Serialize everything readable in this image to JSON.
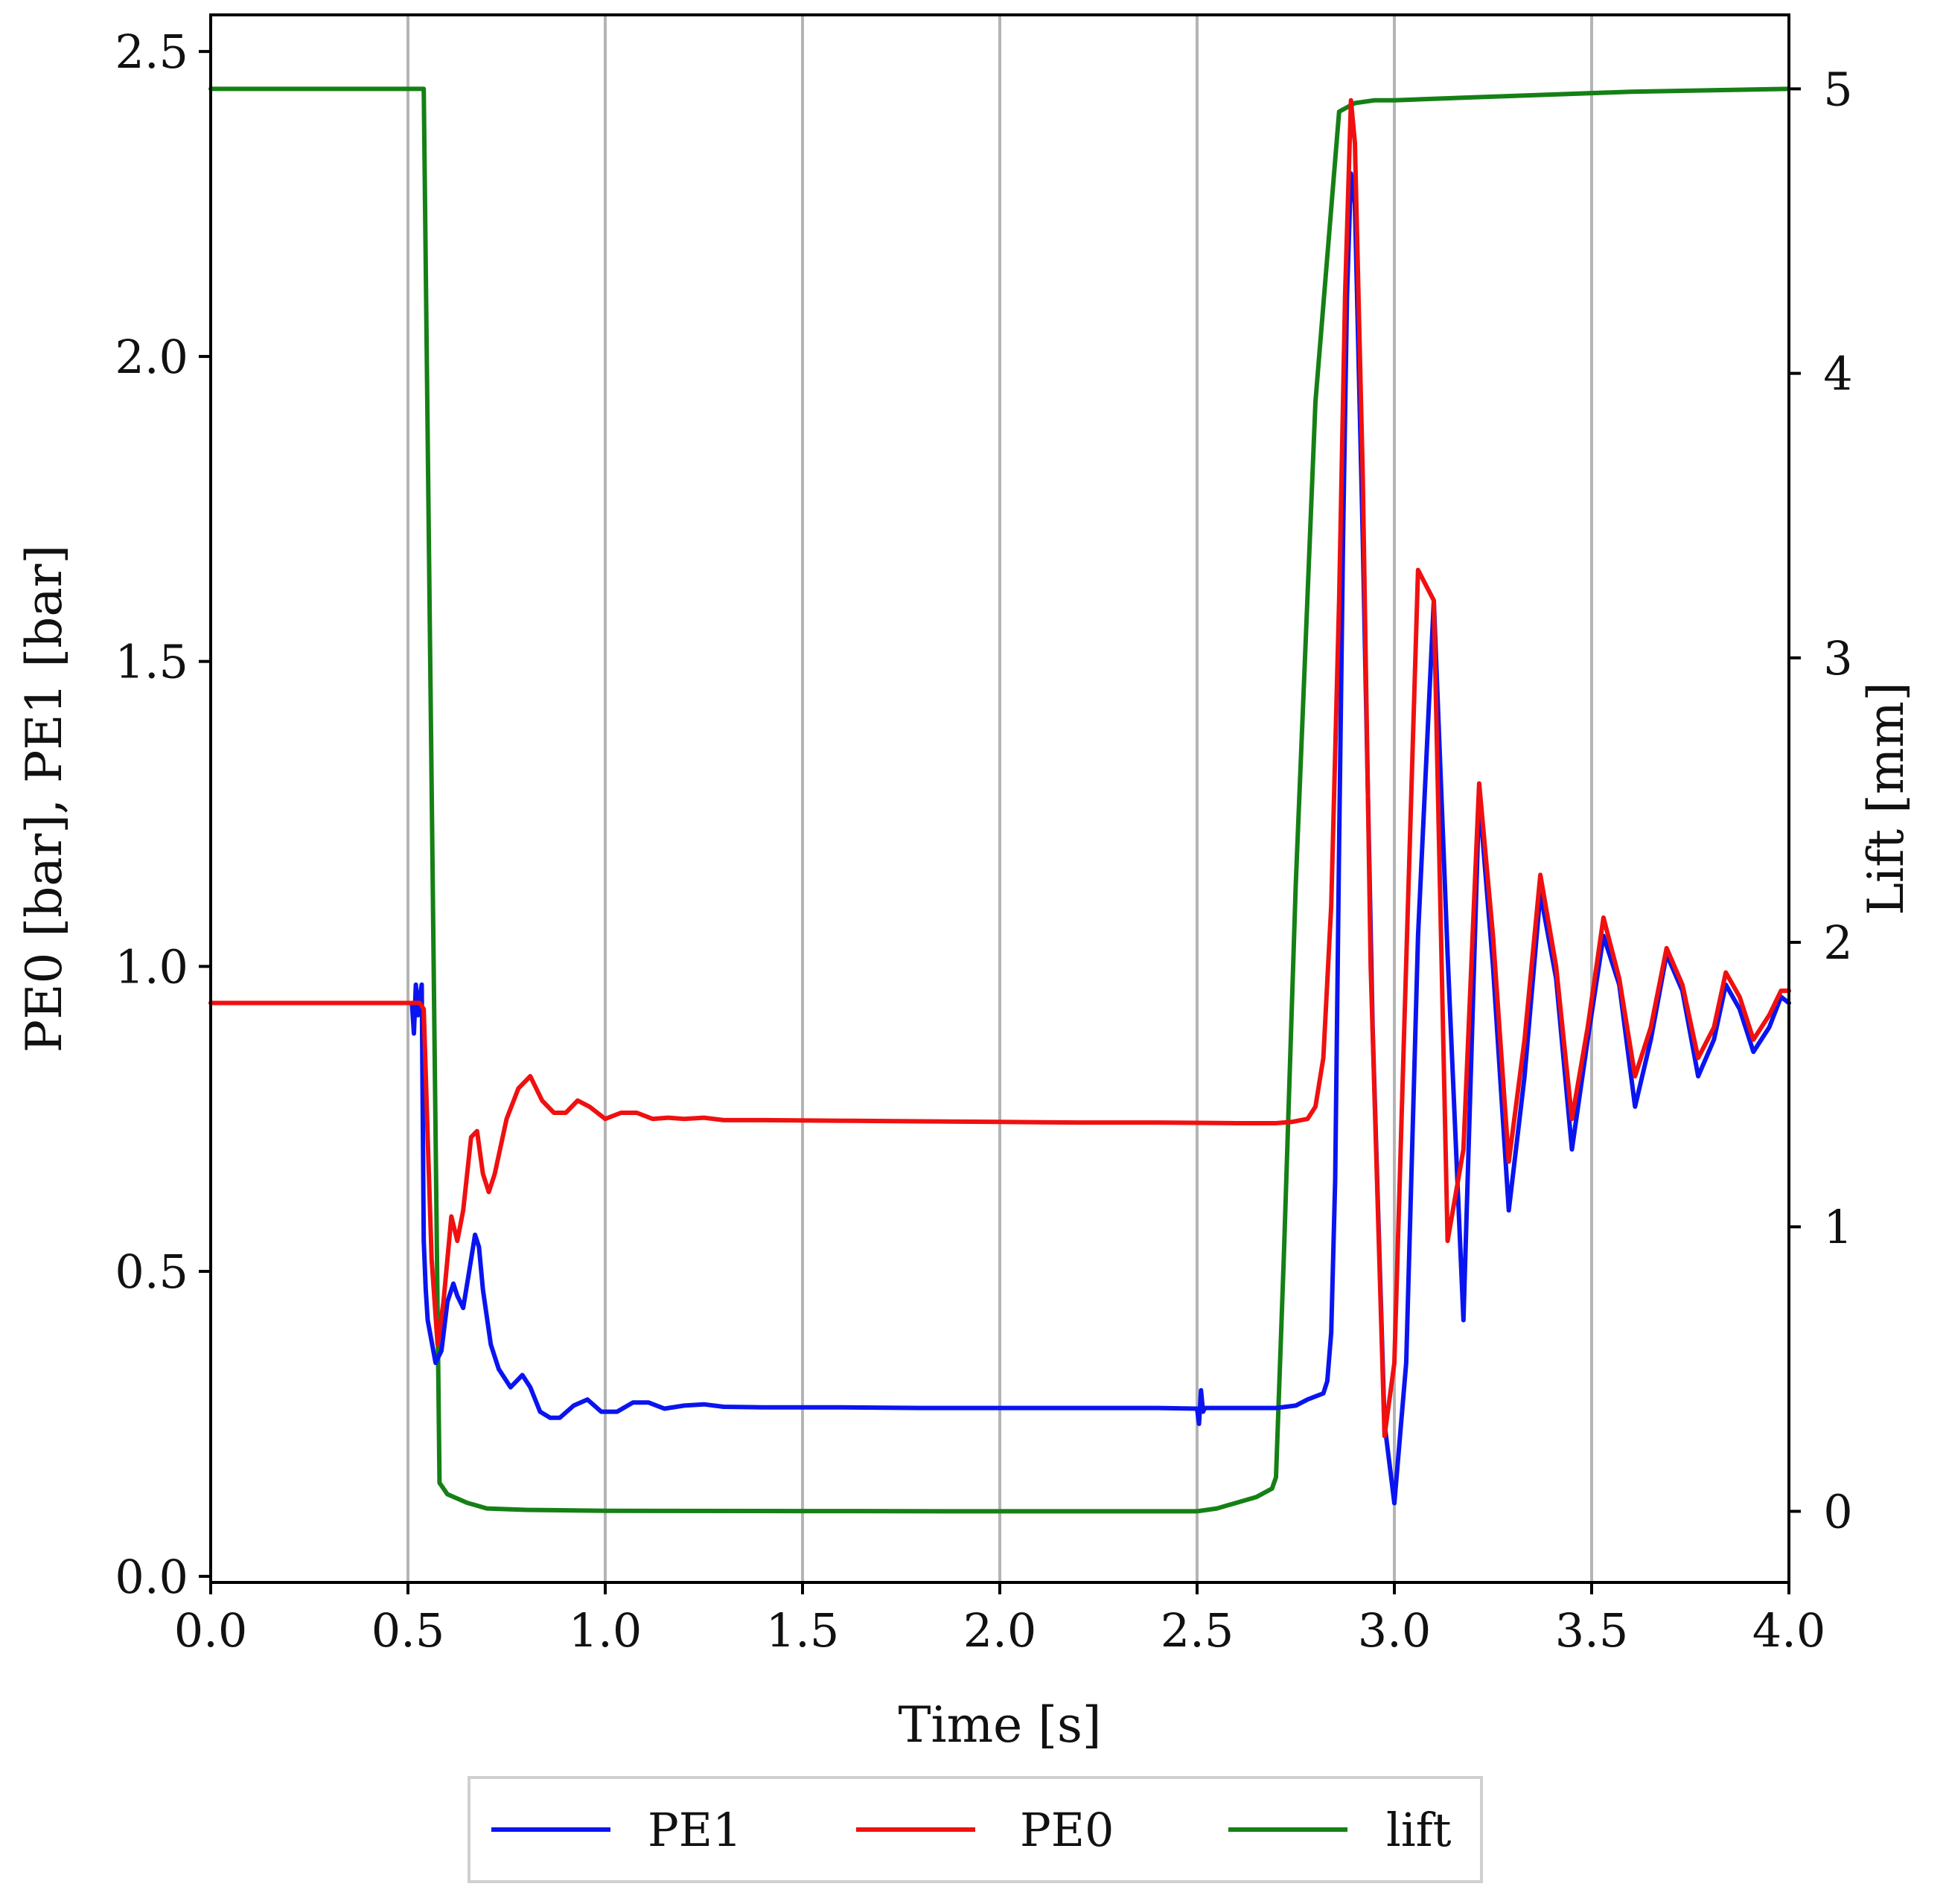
{
  "chart_data": {
    "type": "line",
    "title": "",
    "xlabel": "Time [s]",
    "ylabel": "PE0 [bar], PE1 [bar]",
    "y2label": "Lift [mm]",
    "xlim": [
      0.0,
      4.0
    ],
    "ylim": [
      -0.01,
      2.56
    ],
    "y2lim": [
      -0.25,
      5.26
    ],
    "xticks": [
      "0.0",
      "0.5",
      "1.0",
      "1.5",
      "2.0",
      "2.5",
      "3.0",
      "3.5",
      "4.0"
    ],
    "yticks": [
      "0.0",
      "0.5",
      "1.0",
      "1.5",
      "2.0",
      "2.5"
    ],
    "y2ticks": [
      "0",
      "1",
      "2",
      "3",
      "4",
      "5"
    ],
    "grid": "vertical",
    "legend": {
      "placement": "bottom",
      "entries": [
        "PE1",
        "PE0",
        "lift"
      ]
    },
    "colors": {
      "PE1": "#0a14f0",
      "PE0": "#f01010",
      "lift": "#158015",
      "grid": "#b4b4b4"
    },
    "series": [
      {
        "name": "PE1",
        "axis": "left",
        "x": [
          0.0,
          0.5,
          0.51,
          0.515,
          0.52,
          0.525,
          0.53,
          0.535,
          0.54,
          0.545,
          0.55,
          0.57,
          0.585,
          0.6,
          0.615,
          0.625,
          0.64,
          0.655,
          0.67,
          0.68,
          0.69,
          0.71,
          0.73,
          0.76,
          0.79,
          0.81,
          0.835,
          0.86,
          0.885,
          0.92,
          0.955,
          0.99,
          1.03,
          1.07,
          1.11,
          1.15,
          1.2,
          1.25,
          1.3,
          1.4,
          1.6,
          1.8,
          2.0,
          2.2,
          2.4,
          2.5,
          2.505,
          2.51,
          2.515,
          2.52,
          2.6,
          2.7,
          2.75,
          2.78,
          2.8,
          2.82,
          2.83,
          2.84,
          2.85,
          2.86,
          2.87,
          2.88,
          2.89,
          2.9,
          2.92,
          2.945,
          2.975,
          3.0,
          3.03,
          3.06,
          3.1,
          3.135,
          3.175,
          3.215,
          3.25,
          3.29,
          3.33,
          3.37,
          3.41,
          3.45,
          3.49,
          3.53,
          3.57,
          3.61,
          3.65,
          3.69,
          3.73,
          3.77,
          3.81,
          3.84,
          3.875,
          3.91,
          3.95,
          3.98,
          4.0
        ],
        "values": [
          0.94,
          0.94,
          0.94,
          0.89,
          0.97,
          0.92,
          0.95,
          0.97,
          0.55,
          0.47,
          0.42,
          0.35,
          0.37,
          0.45,
          0.48,
          0.46,
          0.44,
          0.5,
          0.56,
          0.54,
          0.47,
          0.38,
          0.34,
          0.31,
          0.33,
          0.31,
          0.27,
          0.26,
          0.26,
          0.28,
          0.29,
          0.27,
          0.27,
          0.285,
          0.285,
          0.275,
          0.28,
          0.282,
          0.278,
          0.277,
          0.277,
          0.276,
          0.276,
          0.276,
          0.276,
          0.275,
          0.25,
          0.305,
          0.27,
          0.276,
          0.276,
          0.276,
          0.28,
          0.29,
          0.295,
          0.3,
          0.32,
          0.4,
          0.65,
          1.2,
          1.7,
          2.1,
          2.3,
          2.25,
          1.7,
          0.9,
          0.25,
          0.12,
          0.35,
          1.05,
          1.6,
          1.02,
          0.42,
          1.28,
          1.0,
          0.6,
          0.82,
          1.12,
          0.98,
          0.7,
          0.88,
          1.05,
          0.97,
          0.77,
          0.88,
          1.02,
          0.96,
          0.82,
          0.88,
          0.97,
          0.93,
          0.86,
          0.9,
          0.95,
          0.94
        ]
      },
      {
        "name": "PE0",
        "axis": "left",
        "x": [
          0.0,
          0.53,
          0.54,
          0.55,
          0.56,
          0.575,
          0.59,
          0.61,
          0.625,
          0.64,
          0.66,
          0.675,
          0.69,
          0.705,
          0.72,
          0.75,
          0.78,
          0.81,
          0.84,
          0.87,
          0.9,
          0.93,
          0.96,
          1.0,
          1.04,
          1.08,
          1.12,
          1.16,
          1.2,
          1.25,
          1.3,
          1.4,
          1.6,
          1.8,
          2.0,
          2.2,
          2.4,
          2.6,
          2.7,
          2.74,
          2.78,
          2.8,
          2.82,
          2.84,
          2.86,
          2.875,
          2.89,
          2.9,
          2.92,
          2.94,
          2.975,
          3.0,
          3.025,
          3.06,
          3.1,
          3.135,
          3.175,
          3.215,
          3.25,
          3.29,
          3.33,
          3.37,
          3.41,
          3.45,
          3.49,
          3.53,
          3.57,
          3.61,
          3.65,
          3.69,
          3.73,
          3.77,
          3.81,
          3.84,
          3.875,
          3.91,
          3.95,
          3.98,
          4.0
        ],
        "values": [
          0.94,
          0.94,
          0.93,
          0.72,
          0.52,
          0.38,
          0.45,
          0.59,
          0.55,
          0.6,
          0.72,
          0.73,
          0.66,
          0.63,
          0.66,
          0.75,
          0.8,
          0.82,
          0.78,
          0.76,
          0.76,
          0.78,
          0.77,
          0.75,
          0.76,
          0.76,
          0.75,
          0.752,
          0.75,
          0.752,
          0.748,
          0.748,
          0.747,
          0.746,
          0.745,
          0.744,
          0.744,
          0.743,
          0.743,
          0.745,
          0.75,
          0.77,
          0.85,
          1.1,
          1.6,
          2.1,
          2.42,
          2.35,
          1.8,
          1.0,
          0.23,
          0.35,
          0.9,
          1.65,
          1.6,
          0.55,
          0.7,
          1.3,
          1.05,
          0.68,
          0.88,
          1.15,
          1.0,
          0.75,
          0.9,
          1.08,
          0.98,
          0.82,
          0.9,
          1.03,
          0.97,
          0.85,
          0.9,
          0.99,
          0.95,
          0.88,
          0.92,
          0.96,
          0.96
        ]
      },
      {
        "name": "lift",
        "axis": "right",
        "x": [
          0.0,
          0.54,
          0.58,
          0.6,
          0.65,
          0.7,
          0.8,
          1.0,
          1.5,
          2.0,
          2.5,
          2.55,
          2.65,
          2.69,
          2.7,
          2.72,
          2.75,
          2.8,
          2.86,
          2.9,
          2.95,
          3.0,
          3.2,
          3.4,
          3.6,
          4.0
        ],
        "values": [
          5.0,
          5.0,
          0.1,
          0.06,
          0.03,
          0.01,
          0.005,
          0.002,
          0.001,
          0.0,
          0.0,
          0.01,
          0.05,
          0.08,
          0.12,
          0.9,
          2.2,
          3.9,
          4.92,
          4.95,
          4.96,
          4.96,
          4.97,
          4.98,
          4.99,
          5.0
        ]
      }
    ]
  }
}
